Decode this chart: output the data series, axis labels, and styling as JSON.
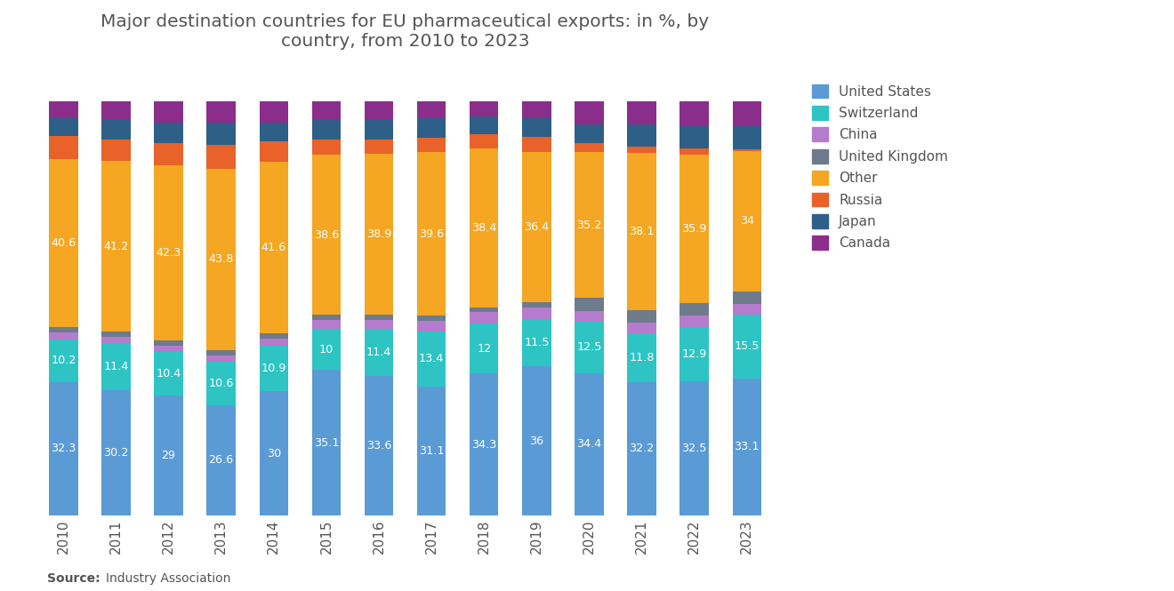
{
  "years": [
    "2010",
    "2011",
    "2012",
    "2013",
    "2014",
    "2015",
    "2016",
    "2017",
    "2018",
    "2019",
    "2020",
    "2021",
    "2022",
    "2023"
  ],
  "series": {
    "United States": [
      32.3,
      30.2,
      29.0,
      26.6,
      30.0,
      35.1,
      33.6,
      31.1,
      34.3,
      36.0,
      34.4,
      32.2,
      32.5,
      33.1
    ],
    "Switzerland": [
      10.2,
      11.4,
      10.4,
      10.6,
      10.9,
      10.0,
      11.4,
      13.4,
      12.0,
      11.5,
      12.5,
      11.8,
      12.9,
      15.5
    ],
    "China": [
      1.8,
      1.6,
      1.5,
      1.5,
      1.8,
      2.2,
      2.3,
      2.5,
      2.8,
      2.8,
      2.5,
      2.5,
      2.8,
      2.5
    ],
    "United Kingdom": [
      1.2,
      1.2,
      1.3,
      1.3,
      1.2,
      1.2,
      1.2,
      1.2,
      1.2,
      1.2,
      3.2,
      3.0,
      3.0,
      3.0
    ],
    "Other": [
      40.6,
      41.2,
      42.3,
      43.8,
      41.6,
      38.6,
      38.9,
      39.6,
      38.4,
      36.4,
      35.2,
      38.1,
      35.9,
      34.0
    ],
    "Russia": [
      5.5,
      5.3,
      5.5,
      5.7,
      4.8,
      3.8,
      3.5,
      3.5,
      3.5,
      3.5,
      2.2,
      1.4,
      1.5,
      0.4
    ],
    "Japan": [
      4.6,
      4.7,
      5.0,
      5.5,
      4.7,
      4.6,
      4.6,
      4.7,
      4.3,
      4.6,
      4.5,
      5.5,
      5.4,
      5.5
    ],
    "Canada": [
      3.8,
      4.4,
      5.0,
      5.0,
      5.0,
      4.5,
      4.5,
      4.0,
      3.5,
      4.0,
      5.5,
      5.5,
      6.0,
      6.0
    ]
  },
  "colors": {
    "United States": "#5B9BD5",
    "Switzerland": "#2EC4C4",
    "China": "#B57BCC",
    "United Kingdom": "#6E7B8B",
    "Other": "#F5A623",
    "Russia": "#E8622A",
    "Japan": "#2E5F87",
    "Canada": "#8B2E8B"
  },
  "title": "Major destination countries for EU pharmaceutical exports: in %, by\ncountry, from 2010 to 2023",
  "source_bold": "Source:",
  "source_normal": "  Industry Association",
  "legend_order": [
    "United States",
    "Switzerland",
    "China",
    "United Kingdom",
    "Other",
    "Russia",
    "Japan",
    "Canada"
  ],
  "bar_width": 0.55,
  "figsize": [
    13.2,
    6.65
  ],
  "dpi": 100,
  "bg_color": "#FFFFFF",
  "text_color": "#555555",
  "label_fontsize": 9.2,
  "title_fontsize": 14.5,
  "source_fontsize": 10,
  "ylim": [
    0,
    108
  ]
}
